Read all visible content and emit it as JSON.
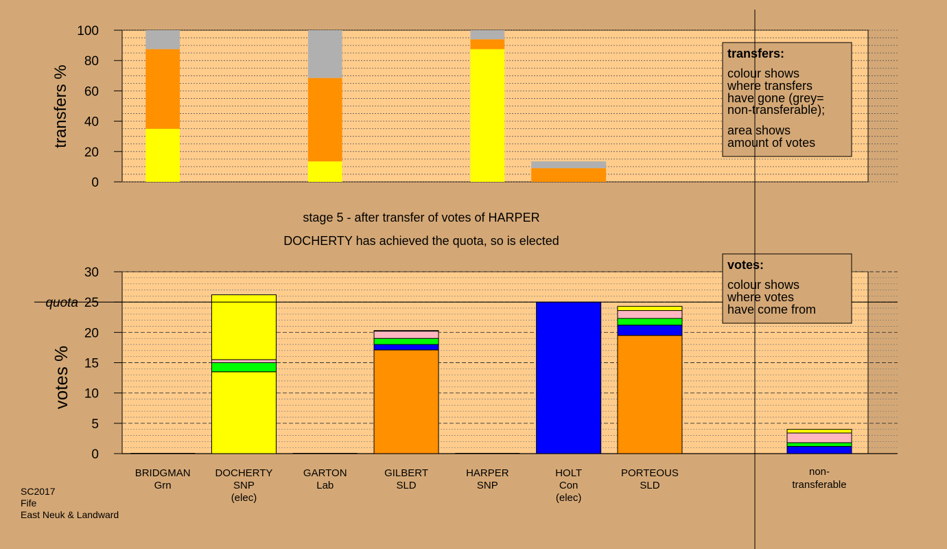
{
  "colors": {
    "background": "#d4a876",
    "panel": "#ffcc8c",
    "yellow": "#ffff00",
    "orange": "#ff9000",
    "green": "#00ff00",
    "blue": "#0000ff",
    "pink": "#ffb6c1",
    "grey": "#b0b0b0"
  },
  "stage_title": "stage 5 - after transfer of votes of HARPER",
  "stage_subtitle": "DOCHERTY has achieved the quota, so is elected",
  "footer": [
    "SC2017",
    "Fife",
    "East Neuk & Landward"
  ],
  "chart_data": [
    {
      "type": "bar",
      "name": "transfers",
      "ylabel": "transfers %",
      "ylim": [
        0,
        100
      ],
      "yticks": [
        "0",
        "20",
        "40",
        "60",
        "80",
        "100"
      ],
      "legend": {
        "title": "transfers:",
        "lines": [
          "colour shows",
          "where transfers",
          "have gone (grey=",
          "non-transferable);",
          "area shows",
          "amount of votes"
        ],
        "position": "top-right"
      },
      "bars": [
        {
          "slot": 0,
          "span": 0.42,
          "segments": [
            {
              "color": "yellow",
              "value": 35
            },
            {
              "color": "orange",
              "value": 52.5
            },
            {
              "color": "grey",
              "value": 12.5
            }
          ]
        },
        {
          "slot": 2,
          "span": 0.42,
          "segments": [
            {
              "color": "yellow",
              "value": 13.5
            },
            {
              "color": "orange",
              "value": 55
            },
            {
              "color": "grey",
              "value": 31.5
            }
          ]
        },
        {
          "slot": 4,
          "span": 0.42,
          "segments": [
            {
              "color": "yellow",
              "value": 87.5
            },
            {
              "color": "orange",
              "value": 6.5
            },
            {
              "color": "grey",
              "value": 6
            }
          ]
        },
        {
          "slot": 5,
          "span": 0.92,
          "segments": [
            {
              "color": "orange",
              "value": 9
            },
            {
              "color": "grey",
              "value": 4.5
            }
          ]
        }
      ]
    },
    {
      "type": "bar",
      "name": "votes",
      "ylabel": "votes %",
      "ylim": [
        0,
        30
      ],
      "yticks": [
        "0",
        "5",
        "10",
        "15",
        "20",
        "25",
        "30"
      ],
      "quota": 25,
      "quota_label": "quota",
      "legend": {
        "title": "votes:",
        "lines": [
          "colour shows",
          "where votes",
          "have come from"
        ],
        "position": "top-right"
      },
      "candidates": [
        {
          "name": "BRIDGMAN",
          "party": "Grn",
          "status": "",
          "segments": []
        },
        {
          "name": "DOCHERTY",
          "party": "SNP",
          "status": "(elec)",
          "segments": [
            {
              "color": "yellow",
              "value": 13.5
            },
            {
              "color": "green",
              "value": 1.5
            },
            {
              "color": "pink",
              "value": 0.5
            },
            {
              "color": "yellow",
              "value": 10.7
            }
          ]
        },
        {
          "name": "GARTON",
          "party": "Lab",
          "status": "",
          "segments": []
        },
        {
          "name": "GILBERT",
          "party": "SLD",
          "status": "",
          "segments": [
            {
              "color": "orange",
              "value": 17.1
            },
            {
              "color": "blue",
              "value": 0.9
            },
            {
              "color": "green",
              "value": 1
            },
            {
              "color": "pink",
              "value": 1.2
            },
            {
              "color": "yellow",
              "value": 0.1
            }
          ]
        },
        {
          "name": "HARPER",
          "party": "SNP",
          "status": "",
          "segments": []
        },
        {
          "name": "HOLT",
          "party": "Con",
          "status": "(elec)",
          "segments": [
            {
              "color": "blue",
              "value": 25
            }
          ]
        },
        {
          "name": "PORTEOUS",
          "party": "SLD",
          "status": "",
          "segments": [
            {
              "color": "orange",
              "value": 19.5
            },
            {
              "color": "blue",
              "value": 1.7
            },
            {
              "color": "green",
              "value": 1.1
            },
            {
              "color": "pink",
              "value": 1.3
            },
            {
              "color": "yellow",
              "value": 0.7
            }
          ]
        }
      ],
      "nontransferable": {
        "label": [
          "non-",
          "transferable"
        ],
        "segments": [
          {
            "color": "blue",
            "value": 1.2
          },
          {
            "color": "green",
            "value": 0.6
          },
          {
            "color": "pink",
            "value": 1.6
          },
          {
            "color": "yellow",
            "value": 0.6
          }
        ]
      }
    }
  ]
}
